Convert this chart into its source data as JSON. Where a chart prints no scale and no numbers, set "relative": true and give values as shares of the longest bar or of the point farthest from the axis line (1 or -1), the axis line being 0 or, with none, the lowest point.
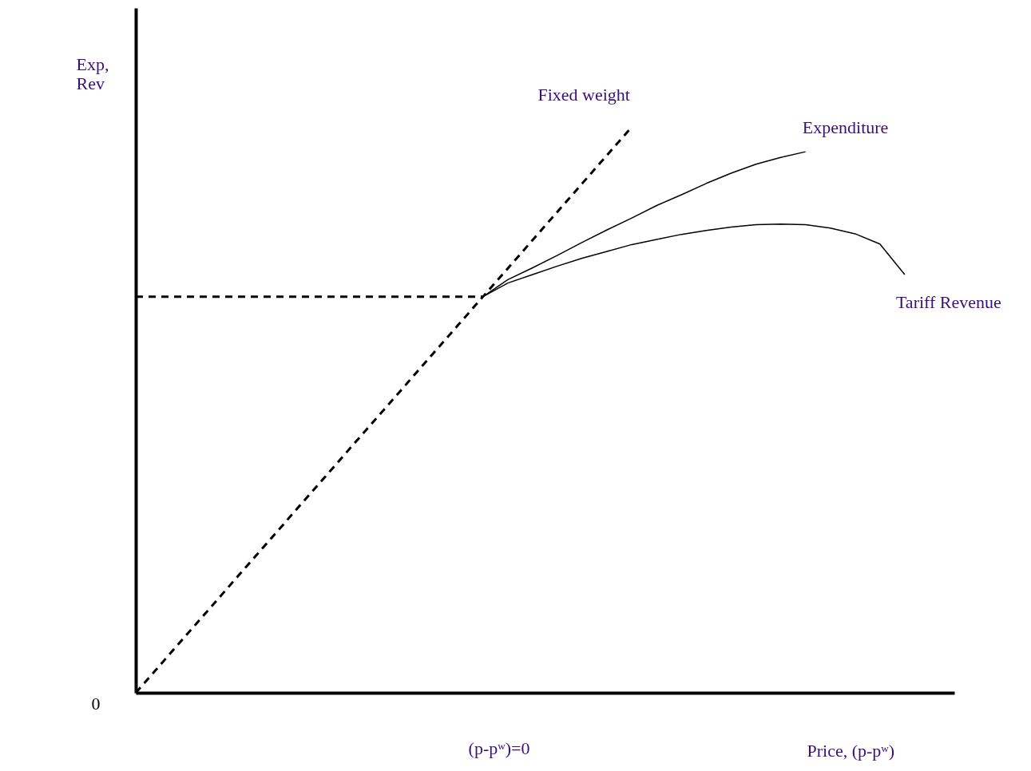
{
  "chart_data": {
    "type": "line",
    "relative": true,
    "xlabel": "Price, (p-pʷ)",
    "ylabel": "Exp,\nRev",
    "categories": [
      null,
      null,
      null,
      null,
      null,
      null,
      null,
      null,
      null,
      null,
      null,
      null,
      null,
      null,
      null,
      null,
      null,
      null,
      null,
      null,
      null,
      null,
      null,
      null,
      null,
      null,
      null,
      null,
      null,
      null,
      null,
      null,
      null,
      null
    ],
    "series": [
      {
        "name": "Fixed weight",
        "color": "#000000",
        "line_style": "dashed",
        "values": [
          0,
          0.05,
          0.1,
          0.15,
          0.2,
          0.25,
          0.3,
          0.35,
          0.4,
          0.45,
          0.5,
          0.55,
          0.6,
          0.65,
          0.7,
          0.75,
          0.8,
          0.85,
          0.9,
          0.95,
          1,
          null,
          null,
          null,
          null,
          null,
          null,
          null,
          null,
          null,
          null,
          null,
          null,
          null
        ]
      },
      {
        "name": "Expenditure",
        "color": "#000000",
        "line_style": "solid",
        "values": [
          null,
          null,
          null,
          null,
          null,
          null,
          null,
          null,
          null,
          null,
          null,
          null,
          null,
          null,
          0.7,
          0.73,
          0.751,
          0.773,
          0.796,
          0.818,
          0.839,
          0.861,
          0.88,
          0.9,
          0.918,
          0.934,
          0.946,
          0.956,
          null,
          null,
          null,
          null,
          null,
          null
        ]
      },
      {
        "name": "Tariff Revenue",
        "color": "#000000",
        "line_style": "solid",
        "values": [
          null,
          null,
          null,
          null,
          null,
          null,
          null,
          null,
          null,
          null,
          null,
          null,
          null,
          null,
          0.7,
          0.724,
          0.739,
          0.754,
          0.768,
          0.78,
          0.792,
          0.801,
          0.81,
          0.817,
          0.823,
          0.827,
          0.828,
          0.827,
          0.821,
          0.811,
          0.793,
          0.739,
          null,
          null
        ]
      },
      {
        "color": "#000000",
        "line_style": "dashed",
        "values": [
          0.7,
          0.7,
          0.7,
          0.7,
          0.7,
          0.7,
          0.7,
          0.7,
          0.7,
          0.7,
          0.7,
          0.7,
          0.7,
          0.7,
          0.7,
          null,
          null,
          null,
          null,
          null,
          null,
          null,
          null,
          null,
          null,
          null,
          null,
          null,
          null,
          null,
          null,
          null,
          null,
          null
        ]
      }
    ],
    "annotations": [
      "0",
      "(p-pʷ)=0"
    ],
    "legend": false,
    "tick_labels": false,
    "grid": false
  }
}
